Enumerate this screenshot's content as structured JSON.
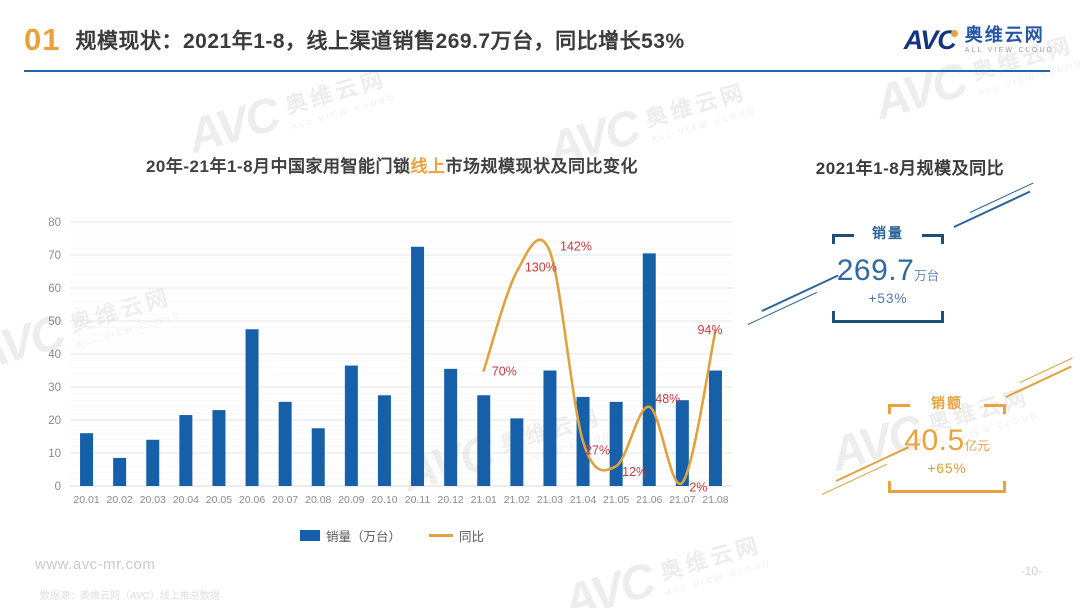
{
  "header": {
    "section_number": "01",
    "title": "规模现状：2021年1-8，线上渠道销售269.7万台，同比增长53%",
    "logo": {
      "abbr": "AVC",
      "name": "奥维云网",
      "tagline": "ALL VIEW CLOUD"
    }
  },
  "watermark": {
    "abbr": "AVC",
    "name": "奥维云网",
    "tagline": "ALL VIEW CLOUD"
  },
  "chart": {
    "title_prefix": "20年-21年1-8月中国家用智能门锁",
    "title_highlight": "线上",
    "title_suffix": "市场规模现状及同比变化",
    "legend": [
      {
        "label": "销量（万台）"
      },
      {
        "label": "同比"
      }
    ]
  },
  "chart_data": {
    "type": "bar+line",
    "title": "20年-21年1-8月中国家用智能门锁线上市场规模现状及同比变化",
    "categories": [
      "20.01",
      "20.02",
      "20.03",
      "20.04",
      "20.05",
      "20.06",
      "20.07",
      "20.08",
      "20.09",
      "20.10",
      "20.11",
      "20.12",
      "21.01",
      "21.02",
      "21.03",
      "21.04",
      "21.05",
      "21.06",
      "21.07",
      "21.08"
    ],
    "series": [
      {
        "name": "销量（万台）",
        "type": "bar",
        "color": "#1560A8",
        "values": [
          16,
          8.5,
          14,
          21.5,
          23,
          47.5,
          25.5,
          17.5,
          36.5,
          27.5,
          72.5,
          35.5,
          27.5,
          20.5,
          35,
          27,
          25.5,
          70.5,
          26,
          35
        ]
      },
      {
        "name": "同比",
        "type": "line",
        "color": "#DFA23E",
        "start_category": "21.01",
        "values_pct": [
          70,
          130,
          142,
          27,
          12,
          48,
          2,
          94
        ],
        "point_labels": [
          "70%",
          "130%",
          "142%",
          "27%",
          "12%",
          "48%",
          "2%",
          "94%"
        ],
        "label_color": "#C43A3C",
        "secondary_scale_to_primary": 0.5
      }
    ],
    "xlabel": "",
    "ylabel": "",
    "ylim": [
      0,
      80
    ],
    "yticks": [
      0,
      10,
      20,
      30,
      40,
      50,
      60,
      70,
      80
    ],
    "grid": true,
    "legend_position": "bottom"
  },
  "panel": {
    "title": "2021年1-8月规模及同比",
    "cards": [
      {
        "label": "销量",
        "value": "269.7",
        "unit": "万台",
        "change": "+53%"
      },
      {
        "label": "销额",
        "value": "40.5",
        "unit": "亿元",
        "change": "+65%"
      }
    ]
  },
  "footer": {
    "website": "www.avc-mr.com",
    "source": "数据源：奥维云网（AVC）线上推总数据",
    "page": "-10-"
  },
  "colors": {
    "bar": "#1560A8",
    "line": "#DFA23E",
    "point_label": "#C43A3C",
    "accent_orange": "#E9A23B",
    "navy": "#1F4E79",
    "header_rule": "#2365A7"
  }
}
